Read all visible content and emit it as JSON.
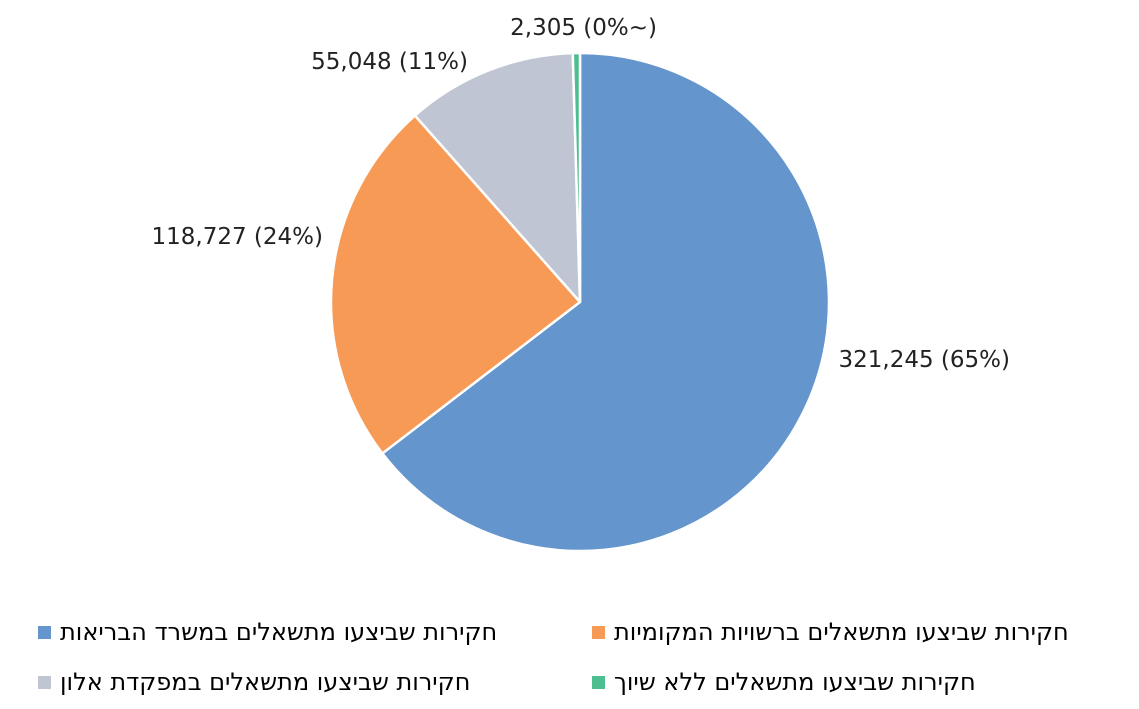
{
  "chart_data": {
    "type": "pie",
    "title": "",
    "slices": [
      {
        "name": "חקירות שביצעו מתשאלים במשרד הבריאות",
        "value": 321245,
        "percent_label": "(65%)",
        "value_label": "321,245",
        "color": "#6495CD"
      },
      {
        "name": "חקירות שביצעו מתשאלים ברשויות המקומיות",
        "value": 118727,
        "percent_label": "(24%)",
        "value_label": "118,727",
        "color": "#F79A56"
      },
      {
        "name": "חקירות שביצעו מתשאלים במפקדת אלון",
        "value": 55048,
        "percent_label": "(11%)",
        "value_label": "55,048",
        "color": "#BFC5D3"
      },
      {
        "name": "חקירות שביצעו מתשאלים ללא שיוך",
        "value": 2305,
        "percent_label": "(0%~)",
        "value_label": "2,305",
        "color": "#4DBE8F"
      }
    ],
    "data_labels": [
      "321,245 (65%)",
      "118,727 (24%)",
      "55,048 (11%)",
      "2,305 (0%~)"
    ],
    "legend": {
      "position": "bottom",
      "entries": [
        "חקירות שביצעו מתשאלים במשרד הבריאות",
        "חקירות שביצעו מתשאלים ברשויות המקומיות",
        "חקירות שביצעו מתשאלים במפקדת אלון",
        "חקירות שביצעו מתשאלים ללא שיוך"
      ]
    }
  }
}
